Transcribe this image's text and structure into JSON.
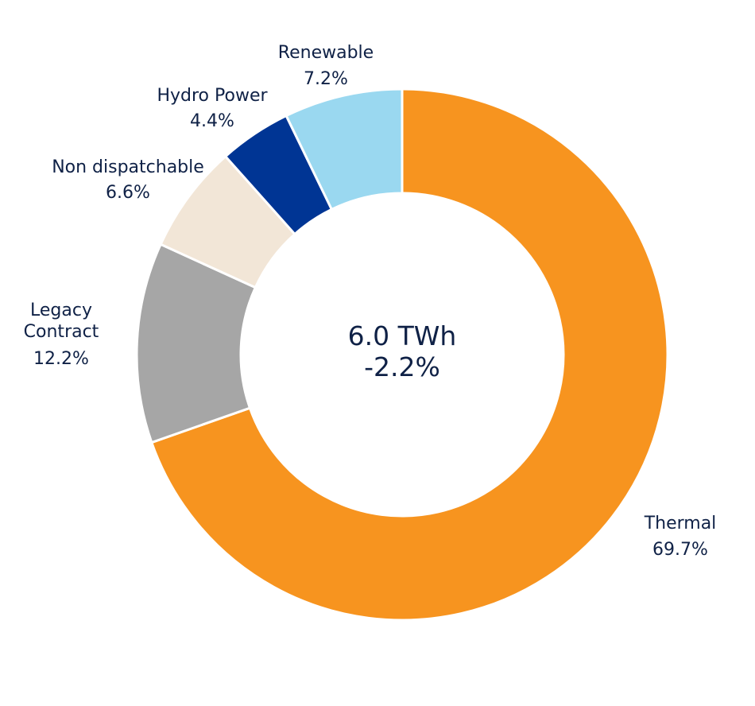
{
  "chart_data": {
    "type": "pie",
    "style": "donut",
    "center_text": [
      "6.0 TWh",
      "-2.2%"
    ],
    "slices": [
      {
        "name": "Thermal",
        "label_lines": [
          "Thermal"
        ],
        "value": 69.7,
        "value_label": "69.7%",
        "color": "#f7941f"
      },
      {
        "name": "Legacy Contract",
        "label_lines": [
          "Legacy",
          "Contract"
        ],
        "value": 12.2,
        "value_label": "12.2%",
        "color": "#a6a6a6"
      },
      {
        "name": "Non dispatchable",
        "label_lines": [
          "Non dispatchable"
        ],
        "value": 6.6,
        "value_label": "6.6%",
        "color": "#f2e6d7"
      },
      {
        "name": "Hydro Power",
        "label_lines": [
          "Hydro Power"
        ],
        "value": 4.4,
        "value_label": "4.4%",
        "color": "#003594"
      },
      {
        "name": "Renewable",
        "label_lines": [
          "Renewable"
        ],
        "value": 7.2,
        "value_label": "7.2%",
        "color": "#9ad8f0"
      }
    ]
  }
}
